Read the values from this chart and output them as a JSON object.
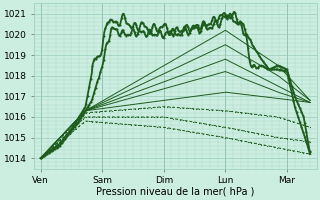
{
  "xlabel": "Pression niveau de la mer( hPa )",
  "ylim": [
    1013.5,
    1021.5
  ],
  "yticks": [
    1014,
    1015,
    1016,
    1017,
    1018,
    1019,
    1020,
    1021
  ],
  "xtick_labels": [
    "Ven",
    "Sam",
    "Dim",
    "Lun",
    "Mar"
  ],
  "xtick_positions": [
    0,
    48,
    96,
    144,
    192
  ],
  "xlim": [
    -5,
    215
  ],
  "bg_color": "#cceee0",
  "grid_color": "#99ccbb",
  "line_color": "#1e5c1e",
  "n_points": 500
}
